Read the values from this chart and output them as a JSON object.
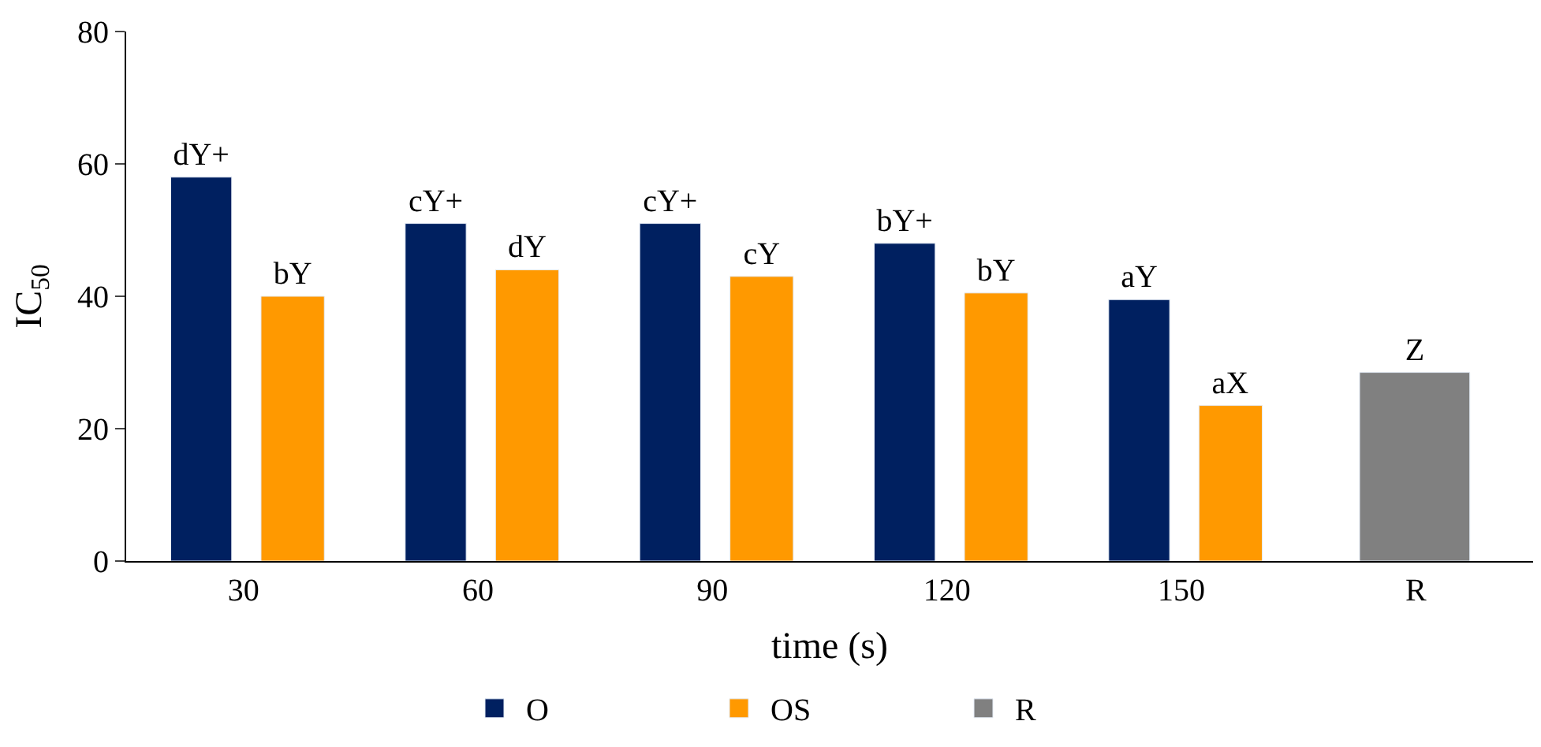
{
  "chart_data": {
    "type": "bar",
    "xlabel": "time (s)",
    "ylabel": "IC$_{50}$",
    "categories": [
      "30",
      "60",
      "90",
      "120",
      "150",
      "R"
    ],
    "series": [
      {
        "name": "O",
        "color": "#002060",
        "values": [
          58,
          51,
          51,
          48,
          39.5,
          null
        ],
        "value_labels": [
          "dY+",
          "cY+",
          "cY+",
          "bY+",
          "aY",
          null
        ]
      },
      {
        "name": "OS",
        "color": "#ff9900",
        "values": [
          40,
          44,
          43,
          40.5,
          23.5,
          null
        ],
        "value_labels": [
          "bY",
          "dY",
          "cY",
          "bY",
          "aX",
          null
        ]
      },
      {
        "name": "R",
        "color": "#808080",
        "values": [
          null,
          null,
          null,
          null,
          null,
          28.5
        ],
        "value_labels": [
          null,
          null,
          null,
          null,
          null,
          "Z"
        ]
      }
    ],
    "ylim": [
      0,
      80
    ],
    "yticks": [
      0,
      20,
      40,
      60,
      80
    ],
    "legend": "bottom"
  }
}
